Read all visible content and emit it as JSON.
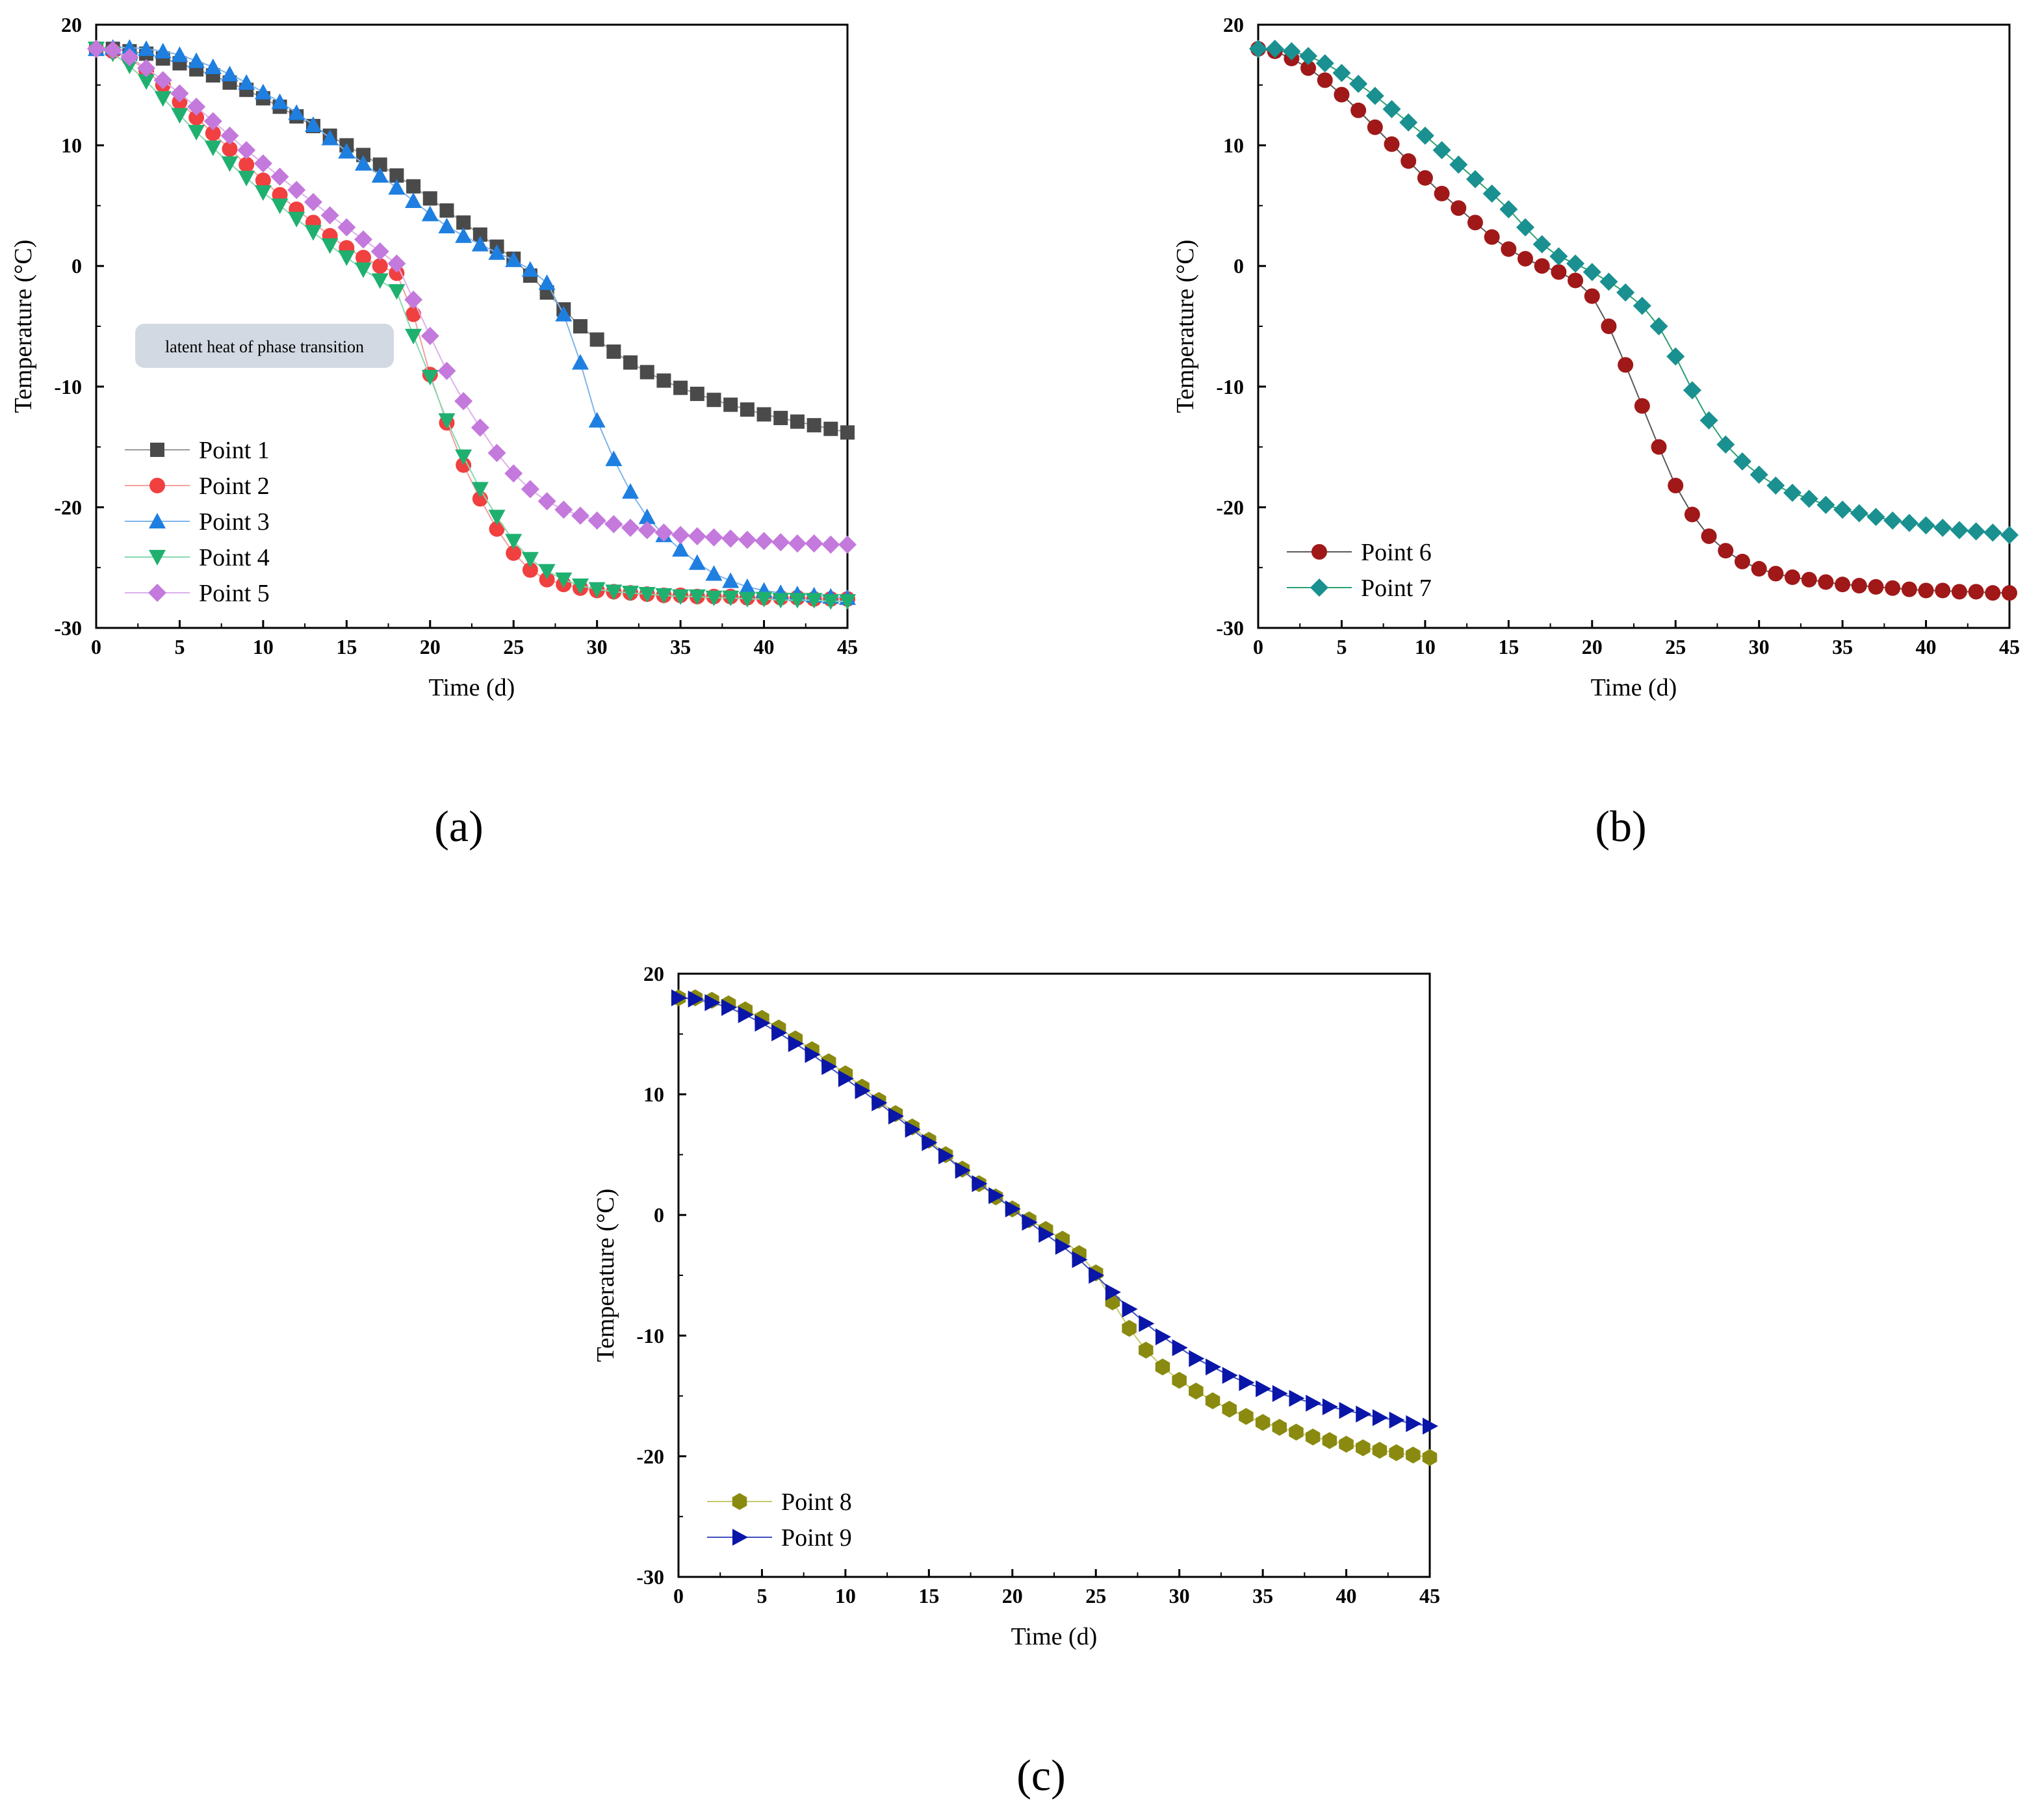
{
  "chart_data": [
    {
      "type": "line",
      "panel_label": "(a)",
      "xlabel": "Time (d)",
      "ylabel": "Temperature (°C)",
      "xlim": [
        0,
        45
      ],
      "ylim": [
        -30,
        20
      ],
      "xticks": [
        0,
        5,
        10,
        15,
        20,
        25,
        30,
        35,
        40,
        45
      ],
      "yticks": [
        20,
        10,
        0,
        -10,
        -20,
        -30
      ],
      "legend_position": "bottom-left",
      "annotation": "latent heat of phase transition",
      "x": [
        0,
        1,
        2,
        3,
        4,
        5,
        6,
        7,
        8,
        9,
        10,
        11,
        12,
        13,
        14,
        15,
        16,
        17,
        18,
        19,
        20,
        21,
        22,
        23,
        24,
        25,
        26,
        27,
        28,
        29,
        30,
        31,
        32,
        33,
        34,
        35,
        36,
        37,
        38,
        39,
        40,
        41,
        42,
        43,
        44,
        45
      ],
      "series": [
        {
          "name": "Point 1",
          "color": "#4a4a4a",
          "line": "#9a9a9a",
          "marker": "square",
          "values": [
            18,
            18,
            17.8,
            17.6,
            17.2,
            16.8,
            16.3,
            15.8,
            15.2,
            14.6,
            13.9,
            13.2,
            12.4,
            11.6,
            10.8,
            10,
            9.2,
            8.4,
            7.5,
            6.6,
            5.6,
            4.6,
            3.6,
            2.6,
            1.6,
            0.6,
            -0.8,
            -2.2,
            -3.6,
            -5,
            -6.1,
            -7.1,
            -8,
            -8.8,
            -9.5,
            -10.1,
            -10.6,
            -11.1,
            -11.5,
            -11.9,
            -12.3,
            -12.6,
            -12.9,
            -13.2,
            -13.5,
            -13.8
          ]
        },
        {
          "name": "Point 2",
          "color": "#f04040",
          "line": "#f4a0a0",
          "marker": "circle",
          "values": [
            18,
            17.8,
            17.2,
            16.2,
            15,
            13.6,
            12.3,
            11,
            9.7,
            8.4,
            7.1,
            5.9,
            4.7,
            3.6,
            2.5,
            1.5,
            0.7,
            0,
            -0.6,
            -4,
            -9,
            -13,
            -16.5,
            -19.3,
            -21.8,
            -23.8,
            -25.2,
            -26,
            -26.4,
            -26.7,
            -26.9,
            -27,
            -27.1,
            -27.2,
            -27.3,
            -27.3,
            -27.4,
            -27.4,
            -27.4,
            -27.5,
            -27.5,
            -27.5,
            -27.5,
            -27.6,
            -27.6,
            -27.6
          ]
        },
        {
          "name": "Point 3",
          "color": "#1e7fe0",
          "line": "#80b4ea",
          "marker": "triangle-up",
          "values": [
            18,
            18.1,
            18.1,
            18,
            17.8,
            17.5,
            17,
            16.5,
            15.9,
            15.2,
            14.4,
            13.6,
            12.7,
            11.7,
            10.6,
            9.5,
            8.5,
            7.5,
            6.5,
            5.4,
            4.3,
            3.3,
            2.5,
            1.8,
            1.1,
            0.5,
            -0.3,
            -1.4,
            -4,
            -8,
            -12.8,
            -16,
            -18.7,
            -20.8,
            -22.3,
            -23.5,
            -24.6,
            -25.5,
            -26.1,
            -26.6,
            -26.9,
            -27.1,
            -27.2,
            -27.3,
            -27.4,
            -27.5
          ]
        },
        {
          "name": "Point 4",
          "color": "#1fb070",
          "line": "#88d8b0",
          "marker": "triangle-down",
          "values": [
            18,
            17.6,
            16.6,
            15.3,
            13.9,
            12.5,
            11.1,
            9.8,
            8.5,
            7.3,
            6.1,
            5,
            3.9,
            2.8,
            1.7,
            0.7,
            -0.3,
            -1.2,
            -2.1,
            -5.8,
            -9.2,
            -12.8,
            -15.8,
            -18.5,
            -20.8,
            -22.8,
            -24.3,
            -25.3,
            -26,
            -26.5,
            -26.8,
            -27,
            -27.1,
            -27.2,
            -27.3,
            -27.4,
            -27.4,
            -27.5,
            -27.5,
            -27.6,
            -27.6,
            -27.7,
            -27.7,
            -27.7,
            -27.8,
            -27.8
          ]
        },
        {
          "name": "Point 5",
          "color": "#c479dc",
          "line": "#dcb0ea",
          "marker": "diamond",
          "values": [
            18,
            17.9,
            17.3,
            16.4,
            15.4,
            14.3,
            13.2,
            12,
            10.8,
            9.6,
            8.5,
            7.4,
            6.3,
            5.3,
            4.2,
            3.2,
            2.2,
            1.2,
            0.2,
            -2.8,
            -5.8,
            -8.7,
            -11.2,
            -13.4,
            -15.5,
            -17.2,
            -18.5,
            -19.5,
            -20.2,
            -20.7,
            -21.1,
            -21.4,
            -21.7,
            -21.9,
            -22.1,
            -22.3,
            -22.4,
            -22.5,
            -22.6,
            -22.7,
            -22.8,
            -22.9,
            -23,
            -23,
            -23.1,
            -23.1
          ]
        }
      ]
    },
    {
      "type": "line",
      "panel_label": "(b)",
      "xlabel": "Time (d)",
      "ylabel": "Temperature (°C)",
      "xlim": [
        0,
        45
      ],
      "ylim": [
        -30,
        20
      ],
      "xticks": [
        0,
        5,
        10,
        15,
        20,
        25,
        30,
        35,
        40,
        45
      ],
      "yticks": [
        20,
        10,
        0,
        -10,
        -20,
        -30
      ],
      "legend_position": "bottom-left",
      "x": [
        0,
        1,
        2,
        3,
        4,
        5,
        6,
        7,
        8,
        9,
        10,
        11,
        12,
        13,
        14,
        15,
        16,
        17,
        18,
        19,
        20,
        21,
        22,
        23,
        24,
        25,
        26,
        27,
        28,
        29,
        30,
        31,
        32,
        33,
        34,
        35,
        36,
        37,
        38,
        39,
        40,
        41,
        42,
        43,
        44,
        45
      ],
      "series": [
        {
          "name": "Point 6",
          "color": "#a01818",
          "line": "#5a5a5a",
          "marker": "circle",
          "values": [
            18,
            17.8,
            17.2,
            16.4,
            15.4,
            14.2,
            12.9,
            11.5,
            10.1,
            8.7,
            7.3,
            6,
            4.8,
            3.6,
            2.4,
            1.4,
            0.6,
            0,
            -0.5,
            -1.2,
            -2.5,
            -5,
            -8.2,
            -11.6,
            -15,
            -18.2,
            -20.6,
            -22.4,
            -23.6,
            -24.5,
            -25.1,
            -25.5,
            -25.8,
            -26,
            -26.2,
            -26.4,
            -26.5,
            -26.6,
            -26.7,
            -26.8,
            -26.9,
            -26.9,
            -27,
            -27,
            -27.1,
            -27.1
          ]
        },
        {
          "name": "Point 7",
          "color": "#1a9090",
          "line": "#2aa070",
          "marker": "diamond",
          "values": [
            18,
            18,
            17.8,
            17.4,
            16.8,
            16,
            15.1,
            14.1,
            13,
            11.9,
            10.8,
            9.6,
            8.4,
            7.2,
            6,
            4.7,
            3.2,
            1.8,
            0.8,
            0.2,
            -0.5,
            -1.3,
            -2.2,
            -3.3,
            -5,
            -7.5,
            -10.3,
            -12.8,
            -14.8,
            -16.2,
            -17.3,
            -18.2,
            -18.8,
            -19.3,
            -19.8,
            -20.2,
            -20.5,
            -20.8,
            -21.1,
            -21.3,
            -21.5,
            -21.7,
            -21.9,
            -22,
            -22.1,
            -22.3
          ]
        }
      ]
    },
    {
      "type": "line",
      "panel_label": "(c)",
      "xlabel": "Time (d)",
      "ylabel": "Temperature (°C)",
      "xlim": [
        0,
        45
      ],
      "ylim": [
        -30,
        20
      ],
      "xticks": [
        0,
        5,
        10,
        15,
        20,
        25,
        30,
        35,
        40,
        45
      ],
      "yticks": [
        20,
        10,
        0,
        -10,
        -20,
        -30
      ],
      "legend_position": "bottom-left",
      "x": [
        0,
        1,
        2,
        3,
        4,
        5,
        6,
        7,
        8,
        9,
        10,
        11,
        12,
        13,
        14,
        15,
        16,
        17,
        18,
        19,
        20,
        21,
        22,
        23,
        24,
        25,
        26,
        27,
        28,
        29,
        30,
        31,
        32,
        33,
        34,
        35,
        36,
        37,
        38,
        39,
        40,
        41,
        42,
        43,
        44,
        45
      ],
      "series": [
        {
          "name": "Point 8",
          "color": "#8a8a10",
          "line": "#c8c870",
          "marker": "hexagon",
          "values": [
            18,
            18,
            17.8,
            17.5,
            17,
            16.3,
            15.5,
            14.6,
            13.7,
            12.7,
            11.7,
            10.6,
            9.5,
            8.4,
            7.3,
            6.2,
            5,
            3.8,
            2.6,
            1.5,
            0.5,
            -0.4,
            -1.2,
            -2,
            -3.2,
            -4.8,
            -7.2,
            -9.4,
            -11.2,
            -12.6,
            -13.7,
            -14.6,
            -15.4,
            -16.1,
            -16.7,
            -17.2,
            -17.6,
            -18,
            -18.4,
            -18.7,
            -19,
            -19.3,
            -19.5,
            -19.7,
            -19.9,
            -20.1
          ]
        },
        {
          "name": "Point 9",
          "color": "#0a16a8",
          "line": "#4050c0",
          "marker": "triangle-right",
          "values": [
            18,
            17.9,
            17.6,
            17.2,
            16.6,
            15.9,
            15.1,
            14.2,
            13.3,
            12.3,
            11.3,
            10.3,
            9.3,
            8.2,
            7.1,
            6,
            4.9,
            3.7,
            2.6,
            1.6,
            0.5,
            -0.6,
            -1.6,
            -2.6,
            -3.7,
            -5,
            -6.4,
            -7.8,
            -9,
            -10.1,
            -11,
            -11.9,
            -12.6,
            -13.3,
            -13.9,
            -14.4,
            -14.8,
            -15.2,
            -15.6,
            -15.9,
            -16.2,
            -16.5,
            -16.8,
            -17,
            -17.3,
            -17.5
          ]
        }
      ]
    }
  ]
}
